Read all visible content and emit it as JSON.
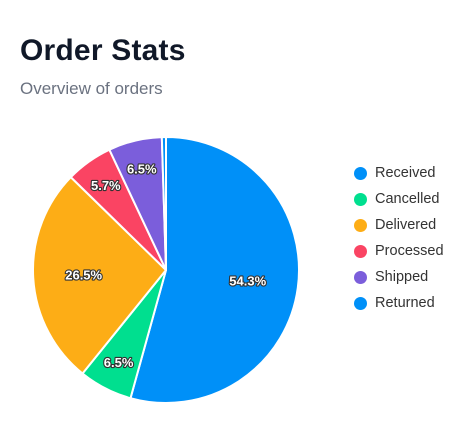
{
  "header": {
    "title": "Order Stats",
    "subtitle": "Overview of orders"
  },
  "chart_data": {
    "type": "pie",
    "title": "Order Stats",
    "subtitle": "Overview of orders",
    "legend_position": "right",
    "slices": [
      {
        "name": "Received",
        "value": 54.3,
        "label": "54.3%",
        "color": "#0090f8"
      },
      {
        "name": "Cancelled",
        "value": 6.5,
        "label": "6.5%",
        "color": "#00df8f"
      },
      {
        "name": "Delivered",
        "value": 26.5,
        "label": "26.5%",
        "color": "#fdad16"
      },
      {
        "name": "Processed",
        "value": 5.7,
        "label": "5.7%",
        "color": "#fa4463"
      },
      {
        "name": "Shipped",
        "value": 6.5,
        "label": "6.5%",
        "color": "#7b5edb"
      },
      {
        "name": "Returned",
        "value": 0.5,
        "label": "",
        "color": "#0090f8"
      }
    ]
  }
}
